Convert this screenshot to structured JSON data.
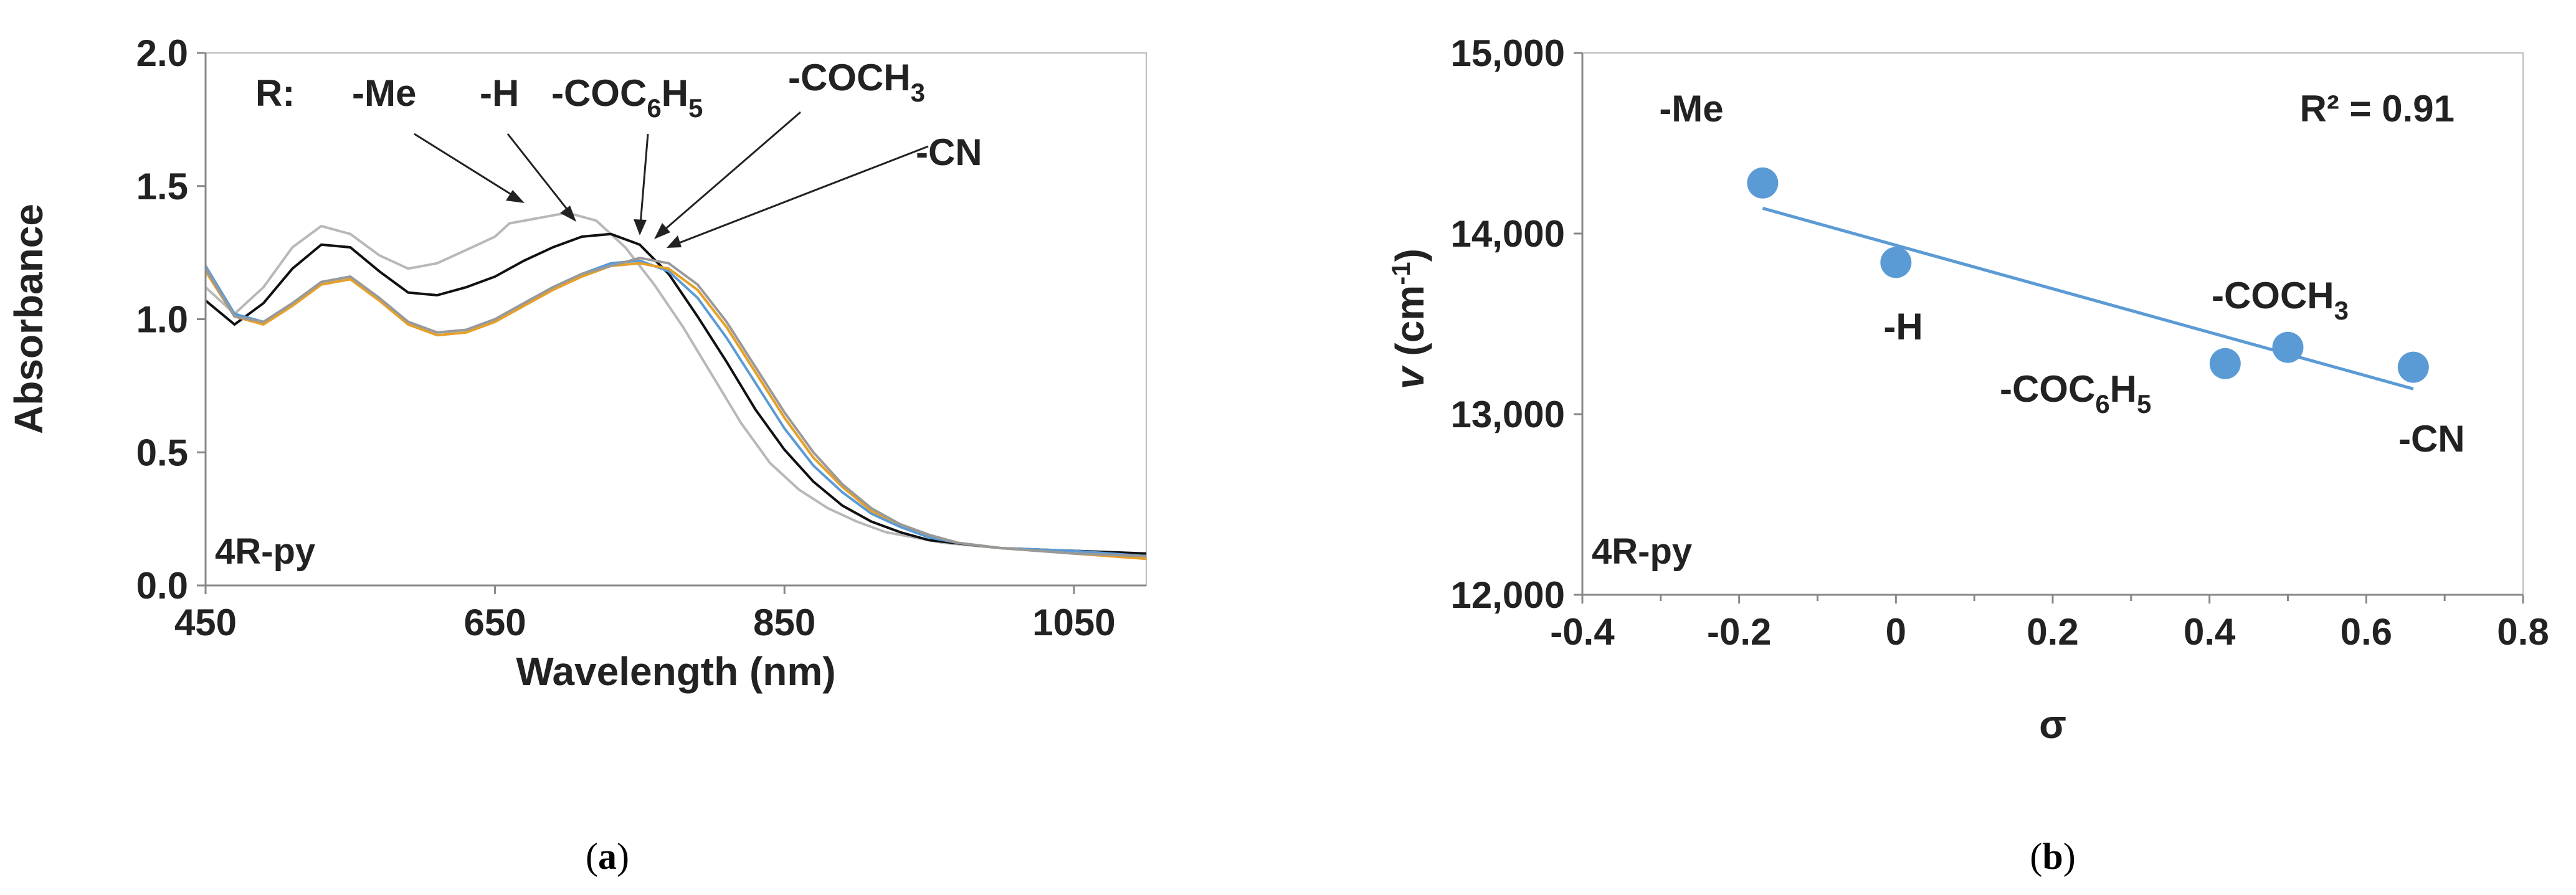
{
  "chart_data": [
    {
      "type": "line",
      "panel_label": "a",
      "xlabel": "Wavelength (nm)",
      "ylabel": "Absorbance",
      "xlim": [
        450,
        1100
      ],
      "ylim": [
        0,
        2.0
      ],
      "xticks": [
        450,
        650,
        850,
        1050
      ],
      "xtick_labels": [
        "450",
        "650",
        "850",
        "1050"
      ],
      "yticks": [
        0,
        0.5,
        1.0,
        1.5,
        2.0
      ],
      "ytick_labels": [
        "0.0",
        "0.5",
        "1.0",
        "1.5",
        "2.0"
      ],
      "inset_label": "4R-py",
      "legend": {
        "prefix": "R:",
        "entries": [
          {
            "text": "-Me",
            "base": "-Me",
            "sub": "",
            "tail": ""
          },
          {
            "text": "-H",
            "base": "-H",
            "sub": "",
            "tail": ""
          },
          {
            "text": "-COC6H5",
            "base": "-COC",
            "sub": "6",
            "base2": "H",
            "sub2": "5"
          },
          {
            "text": "-COCH3",
            "base": "-COCH",
            "sub": "3",
            "tail": ""
          },
          {
            "text": "-CN",
            "base": "-CN",
            "sub": "",
            "tail": ""
          }
        ]
      },
      "series": [
        {
          "name": "-Me",
          "color": "#b8b8b8",
          "x": [
            450,
            470,
            490,
            510,
            530,
            550,
            570,
            590,
            610,
            630,
            650,
            660,
            680,
            700,
            720,
            740,
            760,
            780,
            800,
            820,
            840,
            860,
            880,
            900,
            920,
            940,
            960,
            1000,
            1050,
            1100
          ],
          "y": [
            1.12,
            1.02,
            1.12,
            1.27,
            1.35,
            1.32,
            1.24,
            1.19,
            1.21,
            1.26,
            1.31,
            1.36,
            1.38,
            1.4,
            1.37,
            1.27,
            1.13,
            0.97,
            0.79,
            0.61,
            0.46,
            0.36,
            0.29,
            0.24,
            0.2,
            0.18,
            0.16,
            0.14,
            0.13,
            0.12
          ]
        },
        {
          "name": "-H",
          "color": "#111111",
          "x": [
            450,
            470,
            490,
            510,
            530,
            550,
            570,
            590,
            610,
            630,
            650,
            670,
            690,
            710,
            730,
            750,
            770,
            790,
            810,
            830,
            850,
            870,
            890,
            910,
            930,
            950,
            1000,
            1050,
            1100
          ],
          "y": [
            1.07,
            0.98,
            1.06,
            1.19,
            1.28,
            1.27,
            1.18,
            1.1,
            1.09,
            1.12,
            1.16,
            1.22,
            1.27,
            1.31,
            1.32,
            1.28,
            1.17,
            1.01,
            0.84,
            0.66,
            0.51,
            0.39,
            0.3,
            0.24,
            0.2,
            0.17,
            0.14,
            0.13,
            0.12
          ]
        },
        {
          "name": "-COC6H5",
          "color": "#5b9bd5",
          "x": [
            450,
            470,
            490,
            510,
            530,
            550,
            570,
            590,
            610,
            630,
            650,
            670,
            690,
            710,
            730,
            750,
            770,
            790,
            810,
            830,
            850,
            870,
            890,
            910,
            930,
            950,
            970,
            1000,
            1050,
            1100
          ],
          "y": [
            1.2,
            1.02,
            0.99,
            1.06,
            1.14,
            1.16,
            1.08,
            0.99,
            0.95,
            0.96,
            1.0,
            1.06,
            1.12,
            1.17,
            1.21,
            1.22,
            1.18,
            1.08,
            0.93,
            0.76,
            0.59,
            0.45,
            0.35,
            0.27,
            0.22,
            0.18,
            0.16,
            0.14,
            0.13,
            0.11
          ]
        },
        {
          "name": "-COCH3",
          "color": "#e6a028",
          "x": [
            450,
            470,
            490,
            510,
            530,
            550,
            570,
            590,
            610,
            630,
            650,
            670,
            690,
            710,
            730,
            750,
            770,
            790,
            810,
            830,
            850,
            870,
            890,
            910,
            930,
            950,
            970,
            1000,
            1050,
            1100
          ],
          "y": [
            1.18,
            1.01,
            0.98,
            1.05,
            1.13,
            1.15,
            1.07,
            0.98,
            0.94,
            0.95,
            0.99,
            1.05,
            1.11,
            1.16,
            1.2,
            1.21,
            1.19,
            1.11,
            0.97,
            0.8,
            0.63,
            0.48,
            0.37,
            0.28,
            0.23,
            0.19,
            0.16,
            0.14,
            0.12,
            0.1
          ]
        },
        {
          "name": "-CN",
          "color": "#999999",
          "x": [
            450,
            470,
            490,
            510,
            530,
            550,
            570,
            590,
            610,
            630,
            650,
            670,
            690,
            710,
            730,
            750,
            770,
            790,
            810,
            830,
            850,
            870,
            890,
            910,
            930,
            950,
            970,
            1000,
            1050,
            1100
          ],
          "y": [
            1.19,
            1.01,
            0.99,
            1.06,
            1.14,
            1.16,
            1.08,
            0.99,
            0.95,
            0.96,
            1.0,
            1.06,
            1.12,
            1.17,
            1.2,
            1.23,
            1.21,
            1.13,
            0.99,
            0.82,
            0.65,
            0.5,
            0.38,
            0.29,
            0.23,
            0.19,
            0.16,
            0.14,
            0.12,
            0.11
          ]
        }
      ],
      "annotations": [
        {
          "label": "-Me",
          "target": [
            690,
            1.4
          ]
        },
        {
          "label": "-H",
          "target": [
            730,
            1.32
          ]
        },
        {
          "label": "-COC6H5",
          "target": [
            753,
            1.27
          ]
        },
        {
          "label": "-COCH3",
          "target": [
            763,
            1.25
          ]
        },
        {
          "label": "-CN",
          "target": [
            772,
            1.24
          ]
        }
      ]
    },
    {
      "type": "scatter",
      "panel_label": "b",
      "xlabel": "σ",
      "ylabel_symbol": "v",
      "ylabel_unit_base": "(cm",
      "ylabel_unit_sup": "-1",
      "ylabel_unit_close": ")",
      "ylabel": "v (cm-1)",
      "xlim": [
        -0.4,
        0.8
      ],
      "ylim": [
        12000,
        15000
      ],
      "xticks": [
        -0.4,
        -0.2,
        0,
        0.2,
        0.4,
        0.6,
        0.8
      ],
      "xtick_labels": [
        "-0.4",
        "-0.2",
        "0",
        "0.2",
        "0.4",
        "0.6",
        "0.8"
      ],
      "yticks": [
        12000,
        13000,
        14000,
        15000
      ],
      "ytick_labels": [
        "12,000",
        "13,000",
        "14,000",
        "15,000"
      ],
      "inset_label": "4R-py",
      "r_squared": "R² = 0.91",
      "points": [
        {
          "label": "-Me",
          "base": "-Me",
          "x": -0.17,
          "y": 14280
        },
        {
          "label": "-H",
          "base": "-H",
          "x": 0.0,
          "y": 13840
        },
        {
          "label": "-COC6H5",
          "base": "-COC",
          "sub": "6",
          "base2": "H",
          "sub2": "5",
          "x": 0.42,
          "y": 13280
        },
        {
          "label": "-COCH3",
          "base": "-COCH",
          "sub": "3",
          "x": 0.5,
          "y": 13370
        },
        {
          "label": "-CN",
          "base": "-CN",
          "x": 0.66,
          "y": 13260
        }
      ],
      "trendline": {
        "x": [
          -0.17,
          0.66
        ],
        "y": [
          14140,
          13140
        ]
      },
      "point_color": "#5b9bd5",
      "line_color": "#5b9bd5"
    }
  ]
}
